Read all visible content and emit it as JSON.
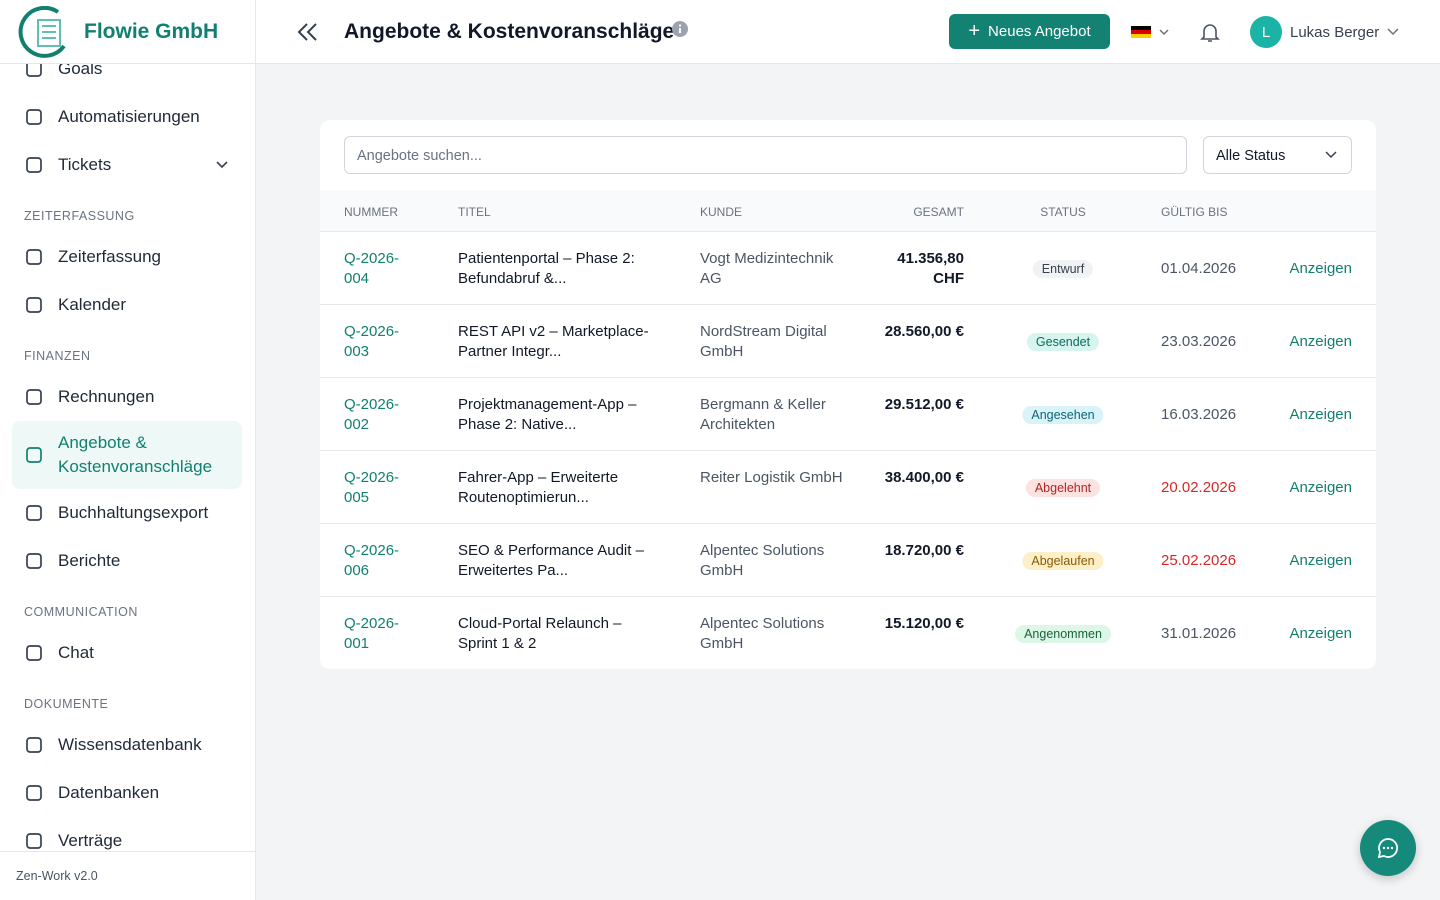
{
  "brand": "Flowie GmbH",
  "sidebar": {
    "nav": [
      {
        "label": "Goals"
      },
      {
        "label": "Automatisierungen"
      },
      {
        "label": "Tickets",
        "expandable": true
      },
      {
        "section": "ZEITERFASSUNG"
      },
      {
        "label": "Zeiterfassung"
      },
      {
        "label": "Kalender"
      },
      {
        "section": "FINANZEN"
      },
      {
        "label": "Rechnungen"
      },
      {
        "label": "Angebote & Kostenvoranschläge",
        "active": true
      },
      {
        "label": "Buchhaltungsexport"
      },
      {
        "label": "Berichte"
      },
      {
        "section": "COMMUNICATION"
      },
      {
        "label": "Chat"
      },
      {
        "section": "DOKUMENTE"
      },
      {
        "label": "Wissensdatenbank"
      },
      {
        "label": "Datenbanken"
      },
      {
        "label": "Verträge"
      }
    ],
    "version": "Zen-Work v2.0"
  },
  "header": {
    "title": "Angebote & Kostenvoranschläge",
    "new_button": "Neues Angebot",
    "user_initial": "L",
    "user_name": "Lukas Berger"
  },
  "filters": {
    "search_placeholder": "Angebote suchen...",
    "status": "Alle Status"
  },
  "table": {
    "columns": [
      "NUMMER",
      "TITEL",
      "KUNDE",
      "GESAMT",
      "STATUS",
      "GÜLTIG BIS"
    ],
    "rows": [
      {
        "number": "Q-2026-004",
        "title": "Patientenportal – Phase 2: Befundabruf &...",
        "customer": "Vogt Medizintechnik AG",
        "total": "41.356,80 CHF",
        "status": "Entwurf",
        "status_bg": "#f1f2f4",
        "status_color": "#374151",
        "valid_until": "01.04.2026",
        "overdue": false,
        "action": "Anzeigen"
      },
      {
        "number": "Q-2026-003",
        "title": "REST API v2 – Marketplace-Partner Integr...",
        "customer": "NordStream Digital GmbH",
        "total": "28.560,00 €",
        "status": "Gesendet",
        "status_bg": "#d5f5ee",
        "status_color": "#0f6b5c",
        "valid_until": "23.03.2026",
        "overdue": false,
        "action": "Anzeigen"
      },
      {
        "number": "Q-2026-002",
        "title": "Projektmanagement-App – Phase 2: Native...",
        "customer": "Bergmann & Keller Architekten",
        "total": "29.512,00 €",
        "status": "Angesehen",
        "status_bg": "#d9f3f8",
        "status_color": "#0e6577",
        "valid_until": "16.03.2026",
        "overdue": false,
        "action": "Anzeigen"
      },
      {
        "number": "Q-2026-005",
        "title": "Fahrer-App – Erweiterte Routenoptimierun...",
        "customer": "Reiter Logistik GmbH",
        "total": "38.400,00 €",
        "status": "Abgelehnt",
        "status_bg": "#fde2e2",
        "status_color": "#b42323",
        "valid_until": "20.02.2026",
        "overdue": true,
        "action": "Anzeigen"
      },
      {
        "number": "Q-2026-006",
        "title": "SEO & Performance Audit – Erweitertes Pa...",
        "customer": "Alpentec Solutions GmbH",
        "total": "18.720,00 €",
        "status": "Abgelaufen",
        "status_bg": "#fdf0c8",
        "status_color": "#8a5a06",
        "valid_until": "25.02.2026",
        "overdue": true,
        "action": "Anzeigen"
      },
      {
        "number": "Q-2026-001",
        "title": "Cloud-Portal Relaunch – Sprint 1 & 2",
        "customer": "Alpentec Solutions GmbH",
        "total": "15.120,00 €",
        "status": "Angenommen",
        "status_bg": "#dcf7e6",
        "status_color": "#16653a",
        "valid_until": "31.01.2026",
        "overdue": false,
        "action": "Anzeigen"
      }
    ]
  }
}
